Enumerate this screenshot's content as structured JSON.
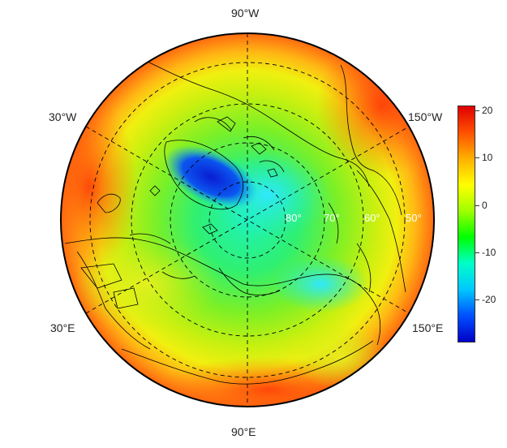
{
  "map": {
    "projection": "north-polar-stereographic",
    "longitude_labels": {
      "top": "90°W",
      "bottom": "90°E",
      "upper_left": "30°W",
      "upper_right": "150°W",
      "lower_left": "30°E",
      "lower_right": "150°E"
    },
    "latitude_labels": [
      "80°",
      "70°",
      "60°",
      "50°"
    ],
    "graticule": "dashed"
  },
  "colorbar": {
    "ticks": [
      "20",
      "10",
      "0",
      "-10",
      "-20"
    ],
    "tick_values": [
      20,
      10,
      0,
      -10,
      -20
    ],
    "range": [
      -29,
      21
    ],
    "colors": [
      "#0000c8",
      "#0050ff",
      "#00c8ff",
      "#00ffc8",
      "#00ff00",
      "#a0ff00",
      "#ffff00",
      "#ffb000",
      "#ff5000",
      "#e00000"
    ]
  },
  "colors": {
    "ocean_core": "#20f0b0",
    "outer_ring": "#ff8000",
    "greenland_ice": "#0030e0",
    "coastline": "#000000"
  }
}
